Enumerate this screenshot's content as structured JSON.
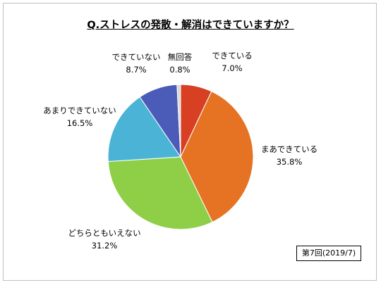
{
  "chart_data": {
    "type": "pie",
    "title": "Q.ストレスの発散・解消はできていますか？",
    "note": "第7回(2019/7)",
    "slices": [
      {
        "label": "できている",
        "value": 7.0,
        "display": "7.0%",
        "color": "#d84023"
      },
      {
        "label": "まあできている",
        "value": 35.8,
        "display": "35.8%",
        "color": "#e57323"
      },
      {
        "label": "どちらともいえない",
        "value": 31.2,
        "display": "31.2%",
        "color": "#8fcf48"
      },
      {
        "label": "あまりできていない",
        "value": 16.5,
        "display": "16.5%",
        "color": "#4bb3d6"
      },
      {
        "label": "できていない",
        "value": 8.7,
        "display": "8.7%",
        "color": "#4a5cb8"
      },
      {
        "label": "無回答",
        "value": 0.8,
        "display": "0.8%",
        "color": "#d9d9d9"
      }
    ]
  }
}
